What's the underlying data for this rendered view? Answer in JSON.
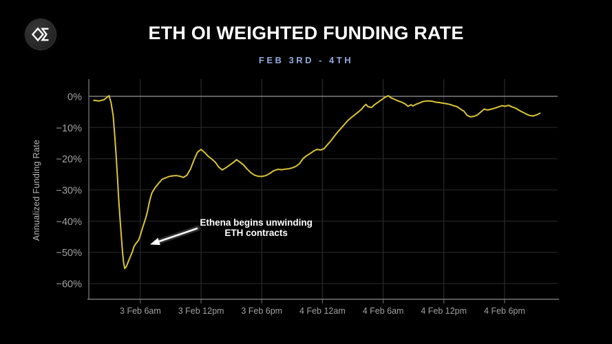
{
  "header": {
    "logo_icon": "sigma-diamond-logo",
    "title": "ETH OI WEIGHTED FUNDING RATE",
    "subtitle": "FEB 3RD - 4TH",
    "subtitle_color": "#92aadd",
    "title_color": "#ffffff"
  },
  "chart_data": {
    "type": "line",
    "title": "ETH OI WEIGHTED FUNDING RATE",
    "subtitle": "FEB 3RD - 4TH",
    "xlabel": "",
    "ylabel": "Annualized Funding Rate",
    "x_unit_note": "hours after 3 Feb 12am",
    "xlim": [
      0.9,
      47.25
    ],
    "ylim": [
      -65.05,
      4.85
    ],
    "grid": true,
    "legend": "none",
    "x_ticks": [
      {
        "t": 6,
        "label": "3 Feb 6am"
      },
      {
        "t": 12,
        "label": "3 Feb 12pm"
      },
      {
        "t": 18,
        "label": "3 Feb 6pm"
      },
      {
        "t": 24,
        "label": "4 Feb 12am"
      },
      {
        "t": 30,
        "label": "4 Feb 6am"
      },
      {
        "t": 36,
        "label": "4 Feb 12pm"
      },
      {
        "t": 42,
        "label": "4 Feb 6pm"
      }
    ],
    "y_ticks": [
      {
        "v": 0,
        "label": "0%"
      },
      {
        "v": -10,
        "label": "−10%"
      },
      {
        "v": -20,
        "label": "−20%"
      },
      {
        "v": -30,
        "label": "−30%"
      },
      {
        "v": -40,
        "label": "−40%"
      },
      {
        "v": -50,
        "label": "−50%"
      },
      {
        "v": -60,
        "label": "−60%"
      }
    ],
    "series": [
      {
        "name": "ETH OI weighted funding rate (annualized)",
        "color": "#dcc538",
        "points": [
          [
            1.4,
            -1.3
          ],
          [
            1.9,
            -1.5
          ],
          [
            2.4,
            -1.1
          ],
          [
            2.9,
            0.2
          ],
          [
            3.1,
            -2
          ],
          [
            3.3,
            -6
          ],
          [
            3.45,
            -12
          ],
          [
            3.6,
            -19
          ],
          [
            3.75,
            -27
          ],
          [
            3.85,
            -32.5
          ],
          [
            3.95,
            -37.5
          ],
          [
            4.05,
            -42
          ],
          [
            4.15,
            -46.5
          ],
          [
            4.25,
            -50.5
          ],
          [
            4.35,
            -53.5
          ],
          [
            4.45,
            -55.2
          ],
          [
            4.6,
            -54.6
          ],
          [
            4.75,
            -53.4
          ],
          [
            4.9,
            -52.2
          ],
          [
            5.05,
            -51
          ],
          [
            5.2,
            -49.9
          ],
          [
            5.35,
            -48.3
          ],
          [
            5.5,
            -47.4
          ],
          [
            5.65,
            -46.8
          ],
          [
            5.8,
            -46.2
          ],
          [
            5.95,
            -45
          ],
          [
            6.1,
            -43.4
          ],
          [
            6.25,
            -41.8
          ],
          [
            6.4,
            -40.3
          ],
          [
            6.55,
            -38.8
          ],
          [
            6.7,
            -36.9
          ],
          [
            6.85,
            -34.5
          ],
          [
            7,
            -32.5
          ],
          [
            7.15,
            -30.9
          ],
          [
            7.45,
            -29.3
          ],
          [
            7.8,
            -27.9
          ],
          [
            8.15,
            -26.6
          ],
          [
            8.5,
            -26.1
          ],
          [
            8.85,
            -25.7
          ],
          [
            9.2,
            -25.5
          ],
          [
            9.55,
            -25.4
          ],
          [
            9.9,
            -25.6
          ],
          [
            10.25,
            -26
          ],
          [
            10.6,
            -25.3
          ],
          [
            10.95,
            -23.3
          ],
          [
            11.3,
            -20.4
          ],
          [
            11.65,
            -17.9
          ],
          [
            12,
            -17
          ],
          [
            12.35,
            -18
          ],
          [
            12.7,
            -19.2
          ],
          [
            13.05,
            -20.1
          ],
          [
            13.4,
            -21.1
          ],
          [
            13.75,
            -22.7
          ],
          [
            14.1,
            -23.6
          ],
          [
            14.45,
            -22.9
          ],
          [
            14.8,
            -22.1
          ],
          [
            15.15,
            -21.3
          ],
          [
            15.5,
            -20.3
          ],
          [
            15.85,
            -21.1
          ],
          [
            16.2,
            -22
          ],
          [
            16.55,
            -23.3
          ],
          [
            16.9,
            -24.4
          ],
          [
            17.25,
            -25.2
          ],
          [
            17.6,
            -25.6
          ],
          [
            18,
            -25.7
          ],
          [
            18.4,
            -25.4
          ],
          [
            18.8,
            -24.7
          ],
          [
            19.2,
            -23.8
          ],
          [
            19.6,
            -23.4
          ],
          [
            20,
            -23.5
          ],
          [
            20.35,
            -23.3
          ],
          [
            20.7,
            -23.2
          ],
          [
            21.05,
            -22.9
          ],
          [
            21.4,
            -22.4
          ],
          [
            21.75,
            -21.5
          ],
          [
            22.1,
            -19.9
          ],
          [
            22.45,
            -19
          ],
          [
            22.8,
            -18.3
          ],
          [
            23.1,
            -17.6
          ],
          [
            23.45,
            -17
          ],
          [
            23.8,
            -17.2
          ],
          [
            24.15,
            -16.8
          ],
          [
            24.5,
            -15.5
          ],
          [
            24.85,
            -14.2
          ],
          [
            25.15,
            -12.9
          ],
          [
            25.5,
            -11.5
          ],
          [
            25.85,
            -10.2
          ],
          [
            26.2,
            -8.9
          ],
          [
            26.5,
            -7.8
          ],
          [
            26.85,
            -6.8
          ],
          [
            27.2,
            -5.9
          ],
          [
            27.55,
            -5
          ],
          [
            27.9,
            -4
          ],
          [
            28.1,
            -3.2
          ],
          [
            28.3,
            -2.6
          ],
          [
            28.5,
            -3.3
          ],
          [
            28.85,
            -3.6
          ],
          [
            29.1,
            -2.8
          ],
          [
            29.45,
            -2
          ],
          [
            29.8,
            -1.2
          ],
          [
            30.15,
            -0.4
          ],
          [
            30.5,
            0.2
          ],
          [
            30.8,
            -0.5
          ],
          [
            31.15,
            -1
          ],
          [
            31.5,
            -1.5
          ],
          [
            31.85,
            -1.9
          ],
          [
            32.2,
            -2.5
          ],
          [
            32.45,
            -3.2
          ],
          [
            32.75,
            -2.7
          ],
          [
            32.95,
            -3.1
          ],
          [
            33.2,
            -2.6
          ],
          [
            33.55,
            -2.2
          ],
          [
            33.9,
            -1.7
          ],
          [
            34.25,
            -1.5
          ],
          [
            34.55,
            -1.5
          ],
          [
            34.9,
            -1.6
          ],
          [
            35.25,
            -1.9
          ],
          [
            35.6,
            -2
          ],
          [
            35.95,
            -2.2
          ],
          [
            36.3,
            -2.4
          ],
          [
            36.6,
            -2.6
          ],
          [
            36.95,
            -3
          ],
          [
            37.3,
            -3.3
          ],
          [
            37.65,
            -4.1
          ],
          [
            38,
            -4.8
          ],
          [
            38.3,
            -6.1
          ],
          [
            38.65,
            -6.6
          ],
          [
            39,
            -6.4
          ],
          [
            39.35,
            -5.9
          ],
          [
            39.7,
            -4.9
          ],
          [
            40,
            -4.1
          ],
          [
            40.35,
            -4.4
          ],
          [
            40.7,
            -4.1
          ],
          [
            41.05,
            -3.8
          ],
          [
            41.4,
            -3.4
          ],
          [
            41.75,
            -3
          ],
          [
            42.05,
            -3.2
          ],
          [
            42.4,
            -2.9
          ],
          [
            42.75,
            -3.4
          ],
          [
            43.1,
            -3.8
          ],
          [
            43.45,
            -4.5
          ],
          [
            43.8,
            -5.1
          ],
          [
            44.1,
            -5.6
          ],
          [
            44.45,
            -6.1
          ],
          [
            44.8,
            -6.3
          ],
          [
            45.15,
            -6
          ],
          [
            45.5,
            -5.4
          ]
        ]
      }
    ],
    "annotation": {
      "text_lines": [
        "Ethena begins unwinding",
        "ETH contracts"
      ],
      "text_center": {
        "t": 17.45,
        "v": -42.8
      },
      "arrow": {
        "from": [
          11.65,
          -42.3
        ],
        "to": [
          6.95,
          -47.5
        ]
      },
      "text_color": "#ffffff",
      "arrow_color": "#ffffff"
    },
    "colors": {
      "background": "#000000",
      "grid_vertical": "#333333",
      "grid_horizontal": "#2c2c2c",
      "zero_line": "#9a9a9a",
      "spine": "#777777",
      "tick_label": "#a2a2a2",
      "axis_title": "#b8b8b8",
      "line": "#dcc538"
    }
  }
}
